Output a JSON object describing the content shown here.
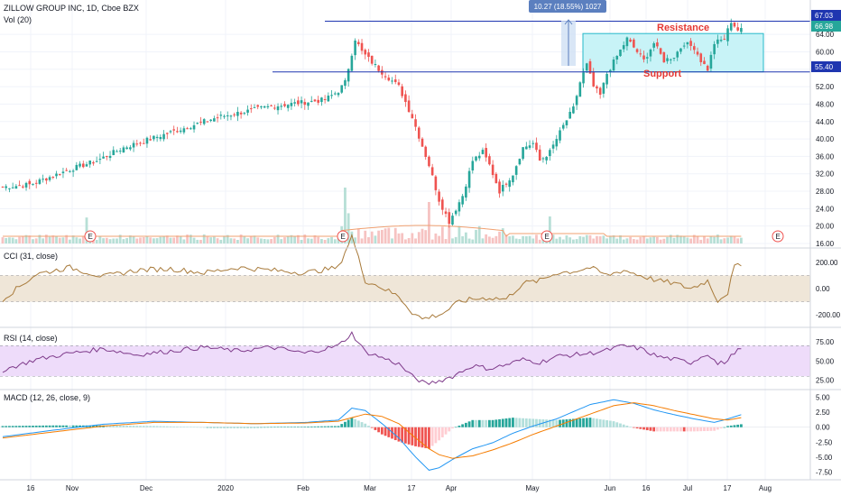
{
  "chart_data": {
    "type": "candlestick",
    "title": "ZILLOW GROUP INC, 1D, Cboe BZX",
    "colors": {
      "up": "#26a69a",
      "down": "#ef5350",
      "up_vol": "#b7dfd6",
      "down_vol": "#f6c3c2",
      "level": "#1f36b0",
      "channel_fill": "#c8f3f7",
      "channel_edge": "#24b8c9",
      "cci": "#a87a3a",
      "cci_band": "#efe6d8",
      "rsi": "#7e3a8a",
      "rsi_band": "#eedcfa",
      "macd": "#2196f3",
      "signal": "#f57c00",
      "note": "#e53935",
      "vol_ma": "#f0a070"
    },
    "x_labels": [
      "16",
      "Nov",
      "Dec",
      "2020",
      "Feb",
      "Mar",
      "17",
      "Apr",
      "May",
      "Jun",
      "16",
      "Jul",
      "17",
      "Aug"
    ],
    "price": {
      "y_ticks": [
        "64.00",
        "60.00",
        "56.00",
        "52.00",
        "48.00",
        "44.00",
        "40.00",
        "36.00",
        "32.00",
        "28.00",
        "24.00",
        "20.00",
        "16.00"
      ],
      "y_range": [
        16,
        69
      ],
      "last_label": "67.03",
      "prev_label": "66.98",
      "support_label": "55.40",
      "levels": [
        67.03,
        55.4
      ],
      "channel": [
        55.4,
        64.2
      ],
      "measure_label": "10.27 (18.55%) 1027",
      "resistance_text": "Resistance",
      "support_text": "Support",
      "earnings_marker": "E",
      "volume_label": "Vol (20)",
      "close_anchors": [
        [
          0,
          29
        ],
        [
          8,
          29.5
        ],
        [
          20,
          33
        ],
        [
          28,
          35
        ],
        [
          36,
          38
        ],
        [
          52,
          42
        ],
        [
          64,
          45
        ],
        [
          80,
          47.5
        ],
        [
          96,
          49
        ],
        [
          100,
          51
        ],
        [
          102,
          53
        ],
        [
          105,
          63
        ],
        [
          107,
          60
        ],
        [
          112,
          56
        ],
        [
          118,
          52
        ],
        [
          122,
          45
        ],
        [
          127,
          34
        ],
        [
          130,
          26
        ],
        [
          133,
          21
        ],
        [
          137,
          27
        ],
        [
          140,
          35
        ],
        [
          143,
          37
        ],
        [
          145,
          34
        ],
        [
          148,
          28
        ],
        [
          152,
          32
        ],
        [
          155,
          38
        ],
        [
          158,
          39
        ],
        [
          160,
          35
        ],
        [
          163,
          37
        ],
        [
          167,
          43
        ],
        [
          170,
          47
        ],
        [
          172,
          53
        ],
        [
          174,
          57
        ],
        [
          176,
          52
        ],
        [
          178,
          50
        ],
        [
          180,
          55
        ],
        [
          183,
          59
        ],
        [
          186,
          63
        ],
        [
          188,
          61
        ],
        [
          191,
          58
        ],
        [
          194,
          62
        ],
        [
          197,
          58
        ],
        [
          200,
          59
        ],
        [
          203,
          62
        ],
        [
          206,
          61
        ],
        [
          208,
          58
        ],
        [
          210,
          56
        ],
        [
          212,
          62
        ],
        [
          215,
          63
        ],
        [
          217,
          67
        ],
        [
          219,
          65
        ]
      ]
    },
    "cci": {
      "label": "CCI (31, close)",
      "y_ticks": [
        "200.00",
        "0.00",
        "-200.00"
      ],
      "y_range": [
        -260,
        260
      ],
      "band": [
        -100,
        100
      ],
      "anchors": [
        [
          0,
          -80
        ],
        [
          10,
          110
        ],
        [
          20,
          160
        ],
        [
          30,
          90
        ],
        [
          40,
          140
        ],
        [
          50,
          150
        ],
        [
          60,
          120
        ],
        [
          70,
          160
        ],
        [
          80,
          140
        ],
        [
          90,
          120
        ],
        [
          100,
          160
        ],
        [
          104,
          400
        ],
        [
          108,
          60
        ],
        [
          112,
          20
        ],
        [
          118,
          -60
        ],
        [
          122,
          -180
        ],
        [
          125,
          -230
        ],
        [
          128,
          -210
        ],
        [
          131,
          -190
        ],
        [
          136,
          -100
        ],
        [
          140,
          -80
        ],
        [
          145,
          -70
        ],
        [
          150,
          -80
        ],
        [
          155,
          40
        ],
        [
          160,
          60
        ],
        [
          165,
          120
        ],
        [
          170,
          130
        ],
        [
          175,
          160
        ],
        [
          180,
          100
        ],
        [
          185,
          140
        ],
        [
          190,
          100
        ],
        [
          195,
          60
        ],
        [
          200,
          40
        ],
        [
          205,
          0
        ],
        [
          210,
          60
        ],
        [
          213,
          -90
        ],
        [
          216,
          -30
        ],
        [
          218,
          170
        ],
        [
          220,
          170
        ]
      ]
    },
    "rsi": {
      "label": "RSI (14, close)",
      "y_ticks": [
        "75.00",
        "50.00",
        "25.00"
      ],
      "y_range": [
        15,
        88
      ],
      "band": [
        30,
        70
      ],
      "anchors": [
        [
          0,
          38
        ],
        [
          10,
          52
        ],
        [
          20,
          60
        ],
        [
          30,
          66
        ],
        [
          40,
          58
        ],
        [
          50,
          63
        ],
        [
          60,
          68
        ],
        [
          70,
          63
        ],
        [
          80,
          68
        ],
        [
          90,
          60
        ],
        [
          100,
          70
        ],
        [
          104,
          86
        ],
        [
          108,
          62
        ],
        [
          112,
          56
        ],
        [
          118,
          46
        ],
        [
          122,
          30
        ],
        [
          126,
          20
        ],
        [
          130,
          24
        ],
        [
          134,
          30
        ],
        [
          140,
          44
        ],
        [
          145,
          40
        ],
        [
          150,
          45
        ],
        [
          155,
          52
        ],
        [
          160,
          48
        ],
        [
          165,
          56
        ],
        [
          170,
          58
        ],
        [
          175,
          60
        ],
        [
          180,
          64
        ],
        [
          185,
          70
        ],
        [
          190,
          66
        ],
        [
          195,
          56
        ],
        [
          200,
          52
        ],
        [
          205,
          48
        ],
        [
          210,
          60
        ],
        [
          213,
          46
        ],
        [
          216,
          50
        ],
        [
          218,
          62
        ],
        [
          220,
          65
        ]
      ]
    },
    "macd": {
      "label": "MACD (12, 26, close, 9)",
      "y_ticks": [
        "5.00",
        "2.50",
        "0.00",
        "-2.50",
        "-5.00",
        "-7.50"
      ],
      "y_range": [
        -8.5,
        5.7
      ],
      "macd_anchors": [
        [
          0,
          -1.6
        ],
        [
          15,
          -0.5
        ],
        [
          30,
          0.5
        ],
        [
          45,
          1.0
        ],
        [
          60,
          0.8
        ],
        [
          75,
          0.6
        ],
        [
          90,
          0.8
        ],
        [
          100,
          1.2
        ],
        [
          104,
          3.2
        ],
        [
          108,
          2.8
        ],
        [
          113,
          0.6
        ],
        [
          118,
          -1.8
        ],
        [
          123,
          -5.0
        ],
        [
          127,
          -7.2
        ],
        [
          130,
          -6.8
        ],
        [
          134,
          -5.4
        ],
        [
          140,
          -3.6
        ],
        [
          146,
          -2.6
        ],
        [
          152,
          -1.0
        ],
        [
          158,
          0.2
        ],
        [
          165,
          1.4
        ],
        [
          170,
          2.6
        ],
        [
          175,
          3.8
        ],
        [
          182,
          4.6
        ],
        [
          188,
          4.0
        ],
        [
          194,
          2.9
        ],
        [
          200,
          2.1
        ],
        [
          206,
          1.4
        ],
        [
          212,
          0.8
        ],
        [
          216,
          1.4
        ],
        [
          220,
          2.1
        ]
      ],
      "signal_anchors": [
        [
          0,
          -1.8
        ],
        [
          15,
          -0.8
        ],
        [
          30,
          0.2
        ],
        [
          45,
          0.8
        ],
        [
          60,
          0.8
        ],
        [
          75,
          0.6
        ],
        [
          90,
          0.7
        ],
        [
          100,
          1.0
        ],
        [
          104,
          1.6
        ],
        [
          108,
          2.2
        ],
        [
          113,
          1.8
        ],
        [
          118,
          0.6
        ],
        [
          123,
          -1.8
        ],
        [
          127,
          -3.6
        ],
        [
          130,
          -4.6
        ],
        [
          134,
          -5.2
        ],
        [
          140,
          -4.8
        ],
        [
          146,
          -3.8
        ],
        [
          152,
          -2.6
        ],
        [
          158,
          -1.2
        ],
        [
          165,
          0.2
        ],
        [
          170,
          1.2
        ],
        [
          175,
          2.2
        ],
        [
          182,
          3.6
        ],
        [
          188,
          4.1
        ],
        [
          194,
          3.6
        ],
        [
          200,
          2.8
        ],
        [
          206,
          2.1
        ],
        [
          212,
          1.4
        ],
        [
          216,
          1.2
        ],
        [
          220,
          1.6
        ]
      ]
    }
  }
}
